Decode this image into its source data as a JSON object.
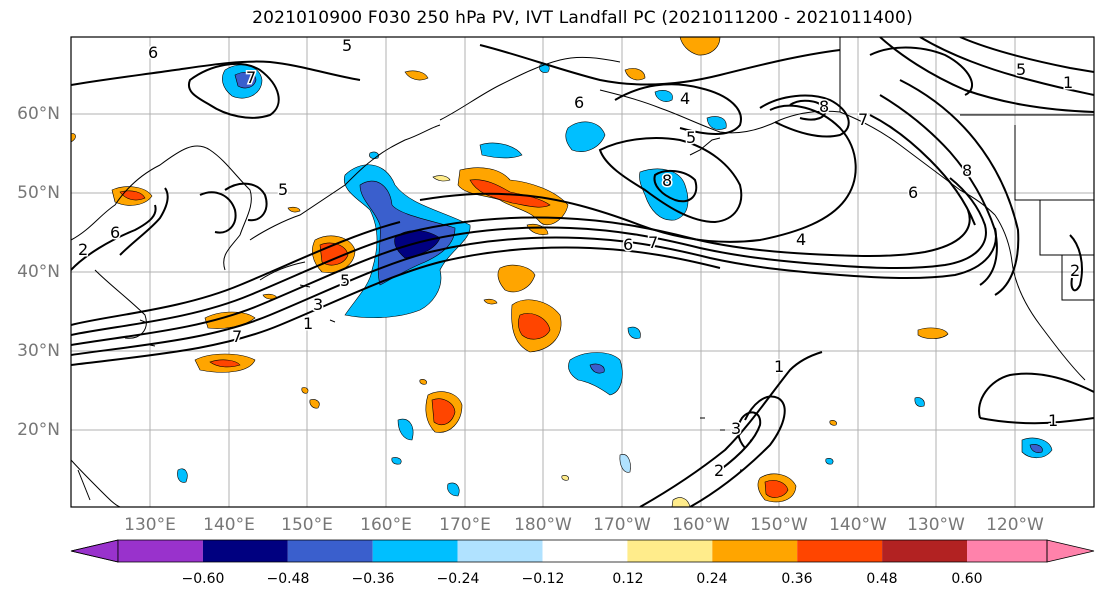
{
  "title": "2021010900 F030 250 hPa PV, IVT Landfall PC (2021011200 - 2021011400)",
  "map": {
    "lat_labels": [
      "60°N",
      "50°N",
      "40°N",
      "30°N",
      "20°N"
    ],
    "lon_labels": [
      "130°E",
      "140°E",
      "150°E",
      "160°E",
      "170°E",
      "180°W",
      "170°W",
      "160°W",
      "150°W",
      "140°W",
      "130°W",
      "120°W"
    ],
    "contour_labels": [
      "6",
      "5",
      "7",
      "6",
      "4",
      "5",
      "8",
      "8",
      "7",
      "6",
      "8",
      "6",
      "7",
      "4",
      "5",
      "3",
      "1",
      "7",
      "1",
      "2",
      "3",
      "1",
      "2",
      "5",
      "2",
      "1",
      "6",
      "5"
    ]
  },
  "colorbar": {
    "ticks": [
      "−0.60",
      "−0.48",
      "−0.36",
      "−0.24",
      "−0.12",
      "0.12",
      "0.24",
      "0.36",
      "0.48",
      "0.60"
    ],
    "colors": [
      "#9932cc",
      "#000080",
      "#3a5fcd",
      "#00bfff",
      "#b0e2ff",
      "#ffffff",
      "#ffec8b",
      "#ffa500",
      "#ff4500",
      "#b22222",
      "#ff82ab"
    ]
  }
}
